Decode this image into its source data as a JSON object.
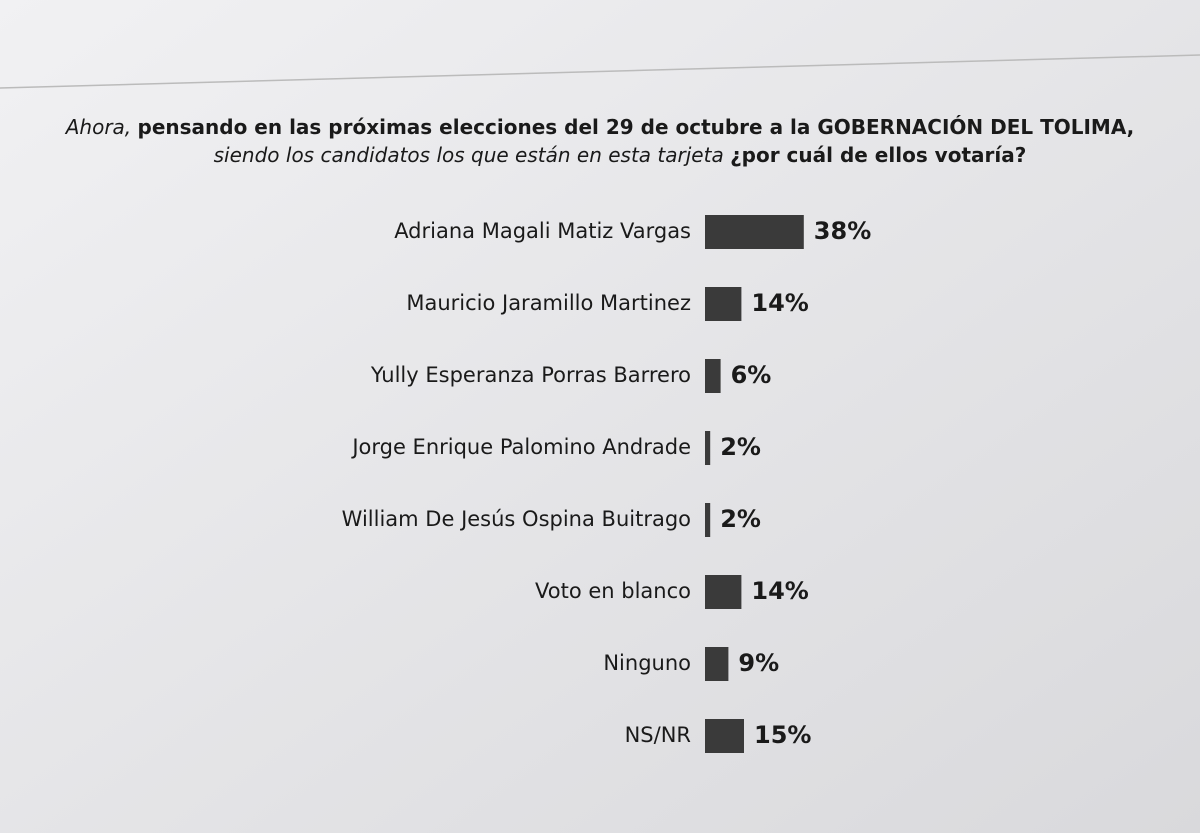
{
  "chart_data": {
    "type": "bar",
    "orientation": "horizontal",
    "title": [
      "Ahora, ",
      "pensando en las próximas elecciones del 29 de octubre a la GOBERNACIÓN  DEL TOLIMA,",
      "siendo los candidatos los que están en esta tarjeta ",
      "¿por cuál de ellos votaría?"
    ],
    "categories": [
      "Adriana Magali Matiz Vargas",
      "Mauricio Jaramillo Martinez",
      "Yully Esperanza Porras Barrero",
      "Jorge Enrique Palomino Andrade",
      "William De Jesús Ospina Buitrago",
      "Voto en blanco",
      "Ninguno",
      "NS/NR"
    ],
    "values": [
      38,
      14,
      6,
      2,
      2,
      14,
      9,
      15
    ],
    "value_labels": [
      "38%",
      "14%",
      "6%",
      "2%",
      "2%",
      "14%",
      "9%",
      "15%"
    ],
    "color": "#3a3a3a"
  }
}
